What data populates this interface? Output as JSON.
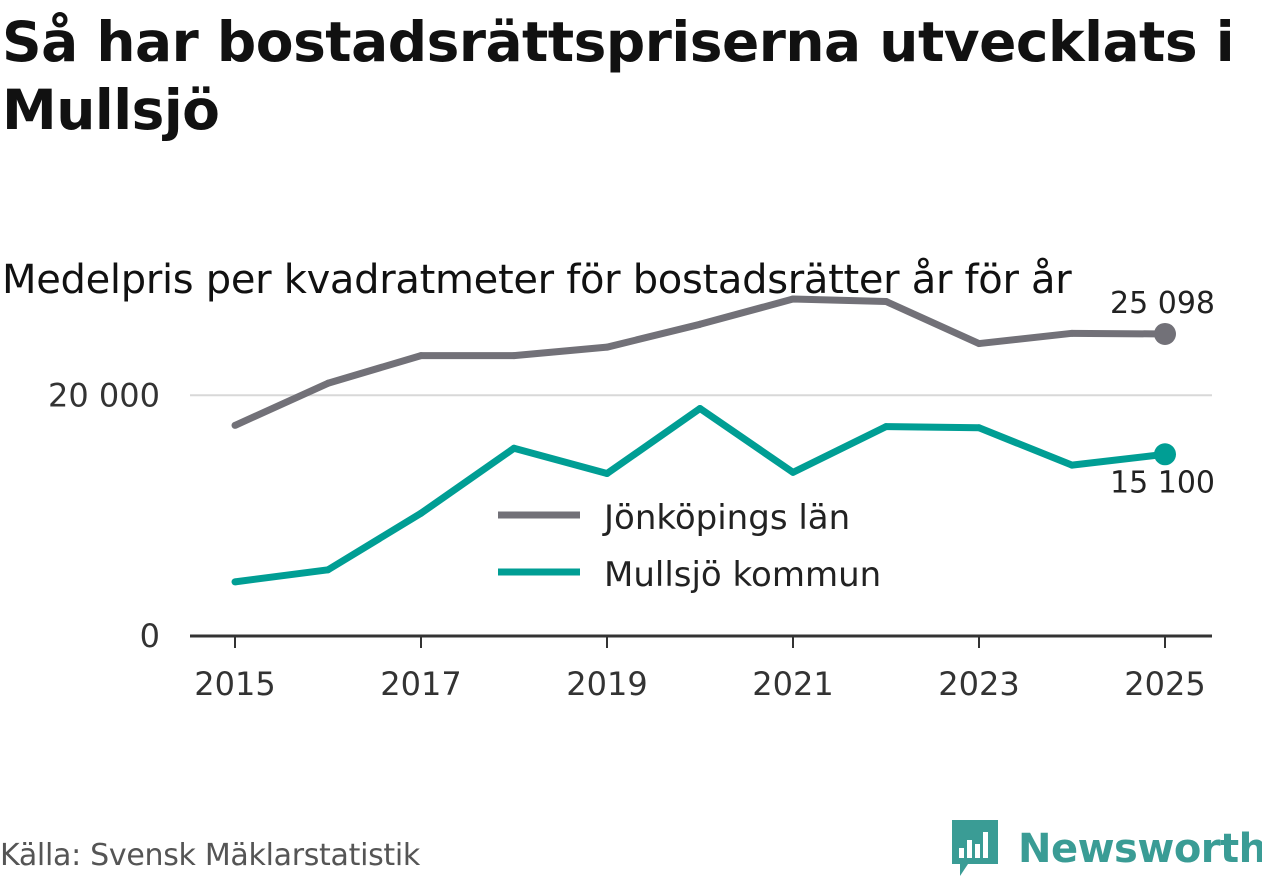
{
  "header": {
    "title": "Så har bostadsrättspriserna utvecklats i Mullsjö",
    "subtitle": "Medelpris per kvadratmeter för bostadsrätter år för år"
  },
  "footer": {
    "source": "Källa: Svensk Mäklarstatistik",
    "brand": "Newsworthy"
  },
  "colors": {
    "lan": "#727178",
    "kommun": "#009e94",
    "gridline": "#d8d8d8",
    "axis": "#333333",
    "brand": "#3a9c95"
  },
  "chart_data": {
    "type": "line",
    "title": "Så har bostadsrättspriserna utvecklats i Mullsjö",
    "subtitle": "Medelpris per kvadratmeter för bostadsrätter år för år",
    "xlabel": "",
    "ylabel": "",
    "x": [
      2015,
      2016,
      2017,
      2018,
      2019,
      2020,
      2021,
      2022,
      2023,
      2024,
      2025
    ],
    "xticks": [
      2015,
      2017,
      2019,
      2021,
      2023,
      2025
    ],
    "xtick_labels": [
      "2015",
      "2017",
      "2019",
      "2021",
      "2023",
      "2025"
    ],
    "yticks": [
      0,
      20000
    ],
    "ytick_labels": [
      "0",
      "20 000"
    ],
    "ylim": [
      0,
      29000
    ],
    "grid": true,
    "legend_position": "center",
    "series": [
      {
        "name": "Jönköpings län",
        "color_key": "lan",
        "values": [
          17500,
          21000,
          23300,
          23300,
          24000,
          25900,
          28000,
          27800,
          24300,
          25150,
          25098
        ],
        "end_label": "25 098"
      },
      {
        "name": "Mullsjö kommun",
        "color_key": "kommun",
        "values": [
          4500,
          5500,
          10200,
          15600,
          13500,
          18900,
          13600,
          17400,
          17300,
          14200,
          15100
        ],
        "end_label": "15 100"
      }
    ]
  }
}
